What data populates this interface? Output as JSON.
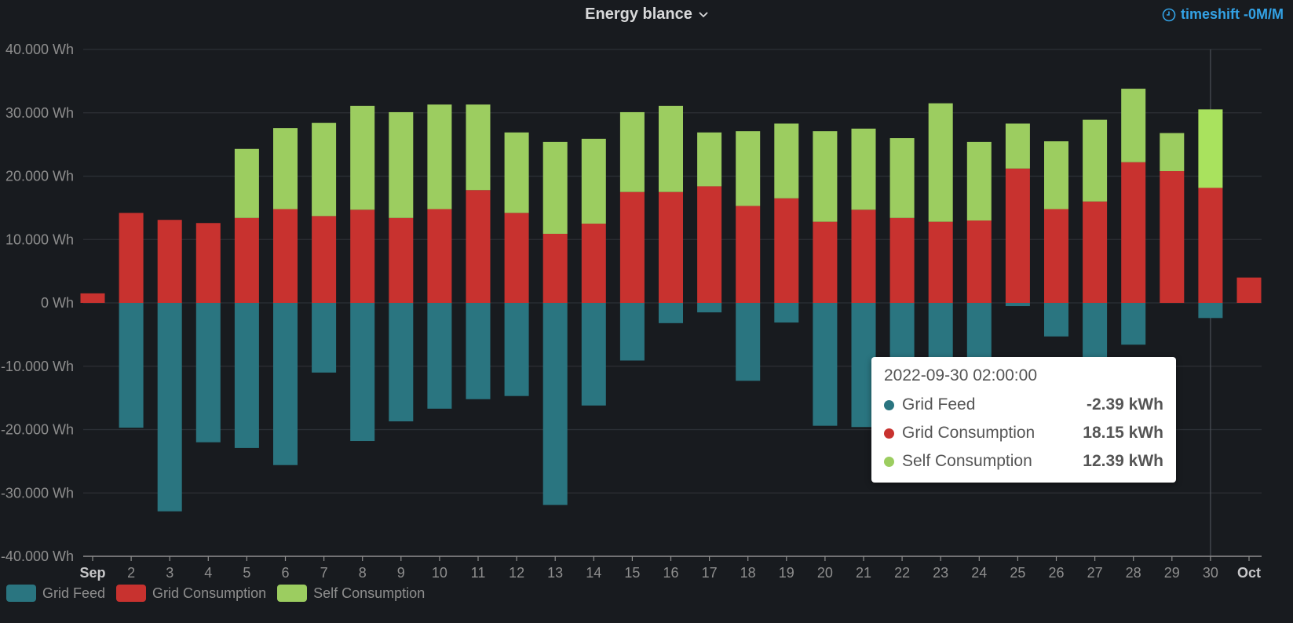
{
  "panel": {
    "title": "Energy blance",
    "timeshift": "timeshift -0M/M"
  },
  "colors": {
    "background": "#181b1f",
    "grid": "#2c3036",
    "axis_text": "#8e8e8e",
    "grid_feed": "#2a7580",
    "grid_consumption": "#c8322f",
    "self_consumption": "#9ccd60",
    "self_consumption_highlight": "#a9e25e",
    "timeshift": "#33a2e5"
  },
  "chart_data": {
    "type": "bar",
    "stacked": true,
    "unit": "Wh",
    "ylim": [
      -40000,
      40000
    ],
    "yticks": [
      40000,
      30000,
      20000,
      10000,
      0,
      -10000,
      -20000,
      -30000,
      -40000
    ],
    "ytick_labels": [
      "40.000 Wh",
      "30.000 Wh",
      "20.000 Wh",
      "10.000 Wh",
      "0 Wh",
      "-10.000 Wh",
      "-20.000 Wh",
      "-30.000 Wh",
      "-40.000 Wh"
    ],
    "categories": [
      "Sep",
      "2",
      "3",
      "4",
      "5",
      "6",
      "7",
      "8",
      "9",
      "10",
      "11",
      "12",
      "13",
      "14",
      "15",
      "16",
      "17",
      "18",
      "19",
      "20",
      "21",
      "22",
      "23",
      "24",
      "25",
      "26",
      "27",
      "28",
      "29",
      "30",
      "Oct"
    ],
    "bold_categories": [
      "Sep",
      "Oct"
    ],
    "series": [
      {
        "name": "Grid Feed",
        "values": [
          0,
          -19700,
          -32900,
          -22000,
          -22900,
          -25600,
          -11000,
          -21800,
          -18700,
          -16700,
          -15200,
          -14700,
          -31900,
          -16200,
          -9100,
          -3200,
          -1500,
          -12300,
          -3100,
          -19400,
          -19600,
          -11000,
          -10000,
          -9800,
          -500,
          -5300,
          -9500,
          -6600,
          0,
          -2390,
          0
        ]
      },
      {
        "name": "Grid Consumption",
        "values": [
          1500,
          14200,
          13100,
          12600,
          13400,
          14800,
          13700,
          14700,
          13400,
          14800,
          17800,
          14200,
          10900,
          12500,
          17500,
          17500,
          18400,
          15300,
          16500,
          12800,
          14700,
          13400,
          12800,
          13000,
          21200,
          14800,
          16000,
          22200,
          20800,
          18150,
          4000
        ]
      },
      {
        "name": "Self Consumption",
        "values": [
          0,
          0,
          0,
          0,
          10900,
          12800,
          14700,
          16400,
          16700,
          16500,
          13500,
          12700,
          14500,
          13400,
          12600,
          13600,
          8500,
          11800,
          11800,
          14300,
          12800,
          12600,
          18700,
          12400,
          7100,
          10700,
          12900,
          11600,
          6000,
          12390,
          0
        ]
      }
    ],
    "highlight_index": 29,
    "legend": [
      "Grid Feed",
      "Grid Consumption",
      "Self Consumption"
    ],
    "legend_position": "bottom-left",
    "grid": true
  },
  "tooltip": {
    "time": "2022-09-30 02:00:00",
    "rows": [
      {
        "name": "Grid Feed",
        "value": "-2.39 kWh"
      },
      {
        "name": "Grid Consumption",
        "value": "18.15 kWh"
      },
      {
        "name": "Self Consumption",
        "value": "12.39 kWh"
      }
    ]
  }
}
